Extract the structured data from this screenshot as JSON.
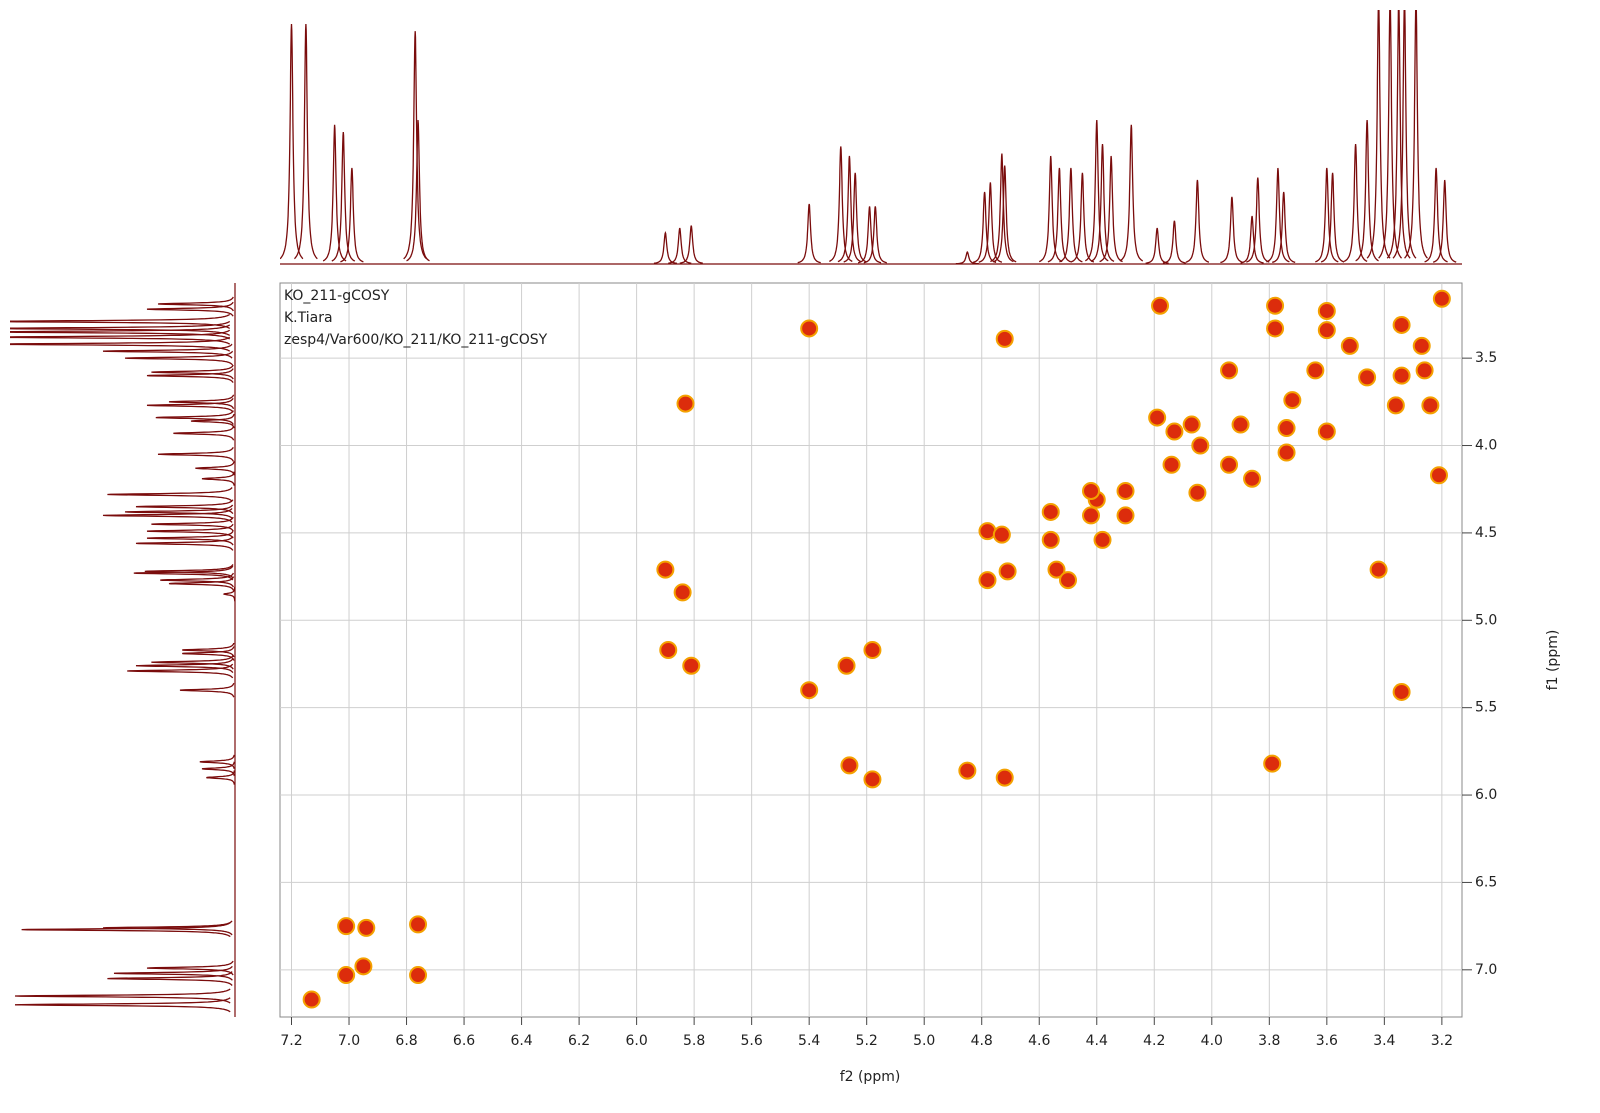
{
  "chart_data": {
    "type": "scatter",
    "annotations": [
      "KO_211-gCOSY",
      "K.Tiara",
      "zesp4/Var600/KO_211/KO_211-gCOSY"
    ],
    "xlabel": "f2 (ppm)",
    "ylabel": "f1 (ppm)",
    "xlim": [
      7.24,
      3.13
    ],
    "ylim": [
      3.07,
      7.27
    ],
    "xticks": [
      7.2,
      {
        "value": 7,
        "label": "7.0"
      },
      6.8,
      6.6,
      6.4,
      6.2,
      {
        "value": 6,
        "label": "6.0"
      },
      5.8,
      5.6,
      5.4,
      5.2,
      {
        "value": 5,
        "label": "5.0"
      },
      4.8,
      4.6,
      4.4,
      4.2,
      {
        "value": 4,
        "label": "4.0"
      },
      3.8,
      3.6,
      3.4,
      3.2
    ],
    "yticks": [
      3.5,
      {
        "value": 4,
        "label": "4.0"
      },
      4.5,
      {
        "value": 5,
        "label": "5.0"
      },
      5.5,
      {
        "value": 6,
        "label": "6.0"
      },
      6.5,
      {
        "value": 7,
        "label": "7.0"
      }
    ],
    "grid": true,
    "color": "#dc2c0c",
    "edge_color": "#f4a100",
    "line_color": "#7a0c0c",
    "x": [
      5.4,
      4.72,
      5.83,
      5.9,
      5.84,
      5.89,
      5.81,
      5.4,
      5.27,
      5.18,
      5.26,
      5.18,
      4.72,
      4.85,
      3.79,
      3.34,
      3.42,
      7.01,
      6.94,
      6.76,
      6.76,
      6.95,
      7.01,
      7.13,
      3.2,
      3.34,
      3.52,
      3.64,
      3.72,
      3.9,
      4.04,
      4.14,
      4.3,
      4.4,
      4.42,
      4.56,
      4.71,
      4.78,
      4.18,
      3.78,
      3.78,
      3.6,
      3.6,
      3.27,
      3.34,
      3.46,
      3.36,
      3.24,
      3.26,
      3.6,
      4.19,
      4.13,
      4.07,
      3.94,
      3.94,
      3.86,
      4.05,
      3.74,
      3.74,
      4.3,
      4.56,
      4.42,
      4.38,
      4.78,
      4.73,
      4.54,
      4.5,
      3.21
    ],
    "y": [
      3.33,
      3.39,
      3.76,
      4.71,
      4.84,
      5.17,
      5.26,
      5.4,
      5.26,
      5.17,
      5.83,
      5.91,
      5.9,
      5.86,
      5.82,
      5.41,
      4.71,
      6.75,
      6.76,
      6.74,
      7.03,
      6.98,
      7.03,
      7.17,
      3.16,
      3.31,
      3.43,
      3.57,
      3.74,
      3.88,
      4.0,
      4.11,
      4.26,
      4.31,
      4.4,
      4.54,
      4.72,
      4.77,
      3.2,
      3.2,
      3.33,
      3.23,
      3.34,
      3.43,
      3.6,
      3.61,
      3.77,
      3.77,
      3.57,
      3.92,
      3.84,
      3.92,
      3.88,
      3.57,
      4.11,
      4.19,
      4.27,
      3.9,
      4.04,
      4.4,
      4.38,
      4.26,
      4.54,
      4.49,
      4.51,
      4.71,
      4.77,
      4.17
    ],
    "projection": {
      "positions": [
        7.2,
        7.15,
        7.05,
        7.02,
        6.99,
        6.77,
        6.76,
        5.9,
        5.85,
        5.81,
        5.4,
        5.29,
        5.26,
        5.24,
        5.19,
        5.17,
        4.85,
        4.79,
        4.77,
        4.73,
        4.72,
        4.56,
        4.53,
        4.49,
        4.45,
        4.4,
        4.38,
        4.35,
        4.28,
        4.19,
        4.13,
        4.05,
        3.93,
        3.86,
        3.84,
        3.77,
        3.75,
        3.6,
        3.58,
        3.5,
        3.46,
        3.42,
        3.38,
        3.35,
        3.33,
        3.29,
        3.22,
        3.19
      ],
      "intensities": [
        100,
        100,
        58,
        55,
        40,
        97,
        60,
        13,
        15,
        16,
        25,
        49,
        45,
        38,
        24,
        24,
        5,
        30,
        34,
        46,
        41,
        45,
        40,
        40,
        38,
        60,
        50,
        45,
        58,
        15,
        18,
        35,
        28,
        20,
        36,
        40,
        30,
        40,
        38,
        50,
        60,
        110,
        110,
        110,
        110,
        110,
        40,
        35
      ]
    }
  }
}
